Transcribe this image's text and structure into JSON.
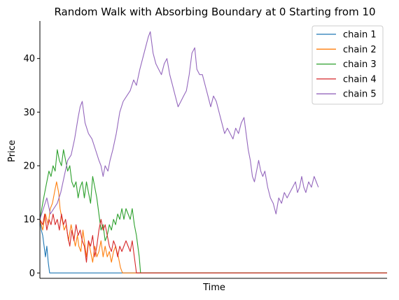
{
  "chart_data": {
    "type": "line",
    "title": "Random Walk with Absorbing Boundary at 0 Starting from 10",
    "xlabel": "Time",
    "ylabel": "Price",
    "xlim": [
      0,
      1000
    ],
    "ylim": [
      -1,
      47
    ],
    "yticks": [
      0,
      10,
      20,
      30,
      40
    ],
    "legend": "top-right",
    "grid": false,
    "series": [
      {
        "name": "chain 1",
        "color": "#1f77b4",
        "points": [
          [
            0,
            10
          ],
          [
            4,
            8
          ],
          [
            8,
            7
          ],
          [
            12,
            5
          ],
          [
            16,
            3
          ],
          [
            20,
            5
          ],
          [
            24,
            2
          ],
          [
            28,
            0
          ],
          [
            1000,
            0
          ]
        ]
      },
      {
        "name": "chain 2",
        "color": "#ff7f0e",
        "points": [
          [
            0,
            10
          ],
          [
            8,
            8
          ],
          [
            16,
            11
          ],
          [
            24,
            9
          ],
          [
            30,
            12
          ],
          [
            36,
            13
          ],
          [
            42,
            15
          ],
          [
            48,
            17
          ],
          [
            54,
            15
          ],
          [
            58,
            12
          ],
          [
            64,
            10
          ],
          [
            70,
            8
          ],
          [
            76,
            9
          ],
          [
            82,
            6
          ],
          [
            90,
            9
          ],
          [
            96,
            7
          ],
          [
            102,
            5
          ],
          [
            108,
            7
          ],
          [
            112,
            5
          ],
          [
            118,
            4
          ],
          [
            124,
            8
          ],
          [
            128,
            6
          ],
          [
            134,
            3
          ],
          [
            140,
            6
          ],
          [
            146,
            4
          ],
          [
            152,
            2
          ],
          [
            158,
            5
          ],
          [
            164,
            3
          ],
          [
            170,
            4
          ],
          [
            176,
            6
          ],
          [
            182,
            3
          ],
          [
            188,
            5
          ],
          [
            194,
            3
          ],
          [
            200,
            4
          ],
          [
            206,
            2
          ],
          [
            212,
            4
          ],
          [
            218,
            5
          ],
          [
            226,
            3
          ],
          [
            232,
            1
          ],
          [
            238,
            0
          ],
          [
            1000,
            0
          ]
        ]
      },
      {
        "name": "chain 3",
        "color": "#2ca02c",
        "points": [
          [
            0,
            10
          ],
          [
            8,
            13
          ],
          [
            14,
            15
          ],
          [
            20,
            17
          ],
          [
            26,
            19
          ],
          [
            32,
            18
          ],
          [
            38,
            20
          ],
          [
            44,
            19
          ],
          [
            50,
            23
          ],
          [
            56,
            21
          ],
          [
            62,
            20
          ],
          [
            68,
            23
          ],
          [
            74,
            21
          ],
          [
            80,
            19
          ],
          [
            86,
            20
          ],
          [
            92,
            17
          ],
          [
            98,
            16
          ],
          [
            104,
            17
          ],
          [
            110,
            14
          ],
          [
            116,
            16
          ],
          [
            122,
            17
          ],
          [
            128,
            14
          ],
          [
            134,
            17
          ],
          [
            140,
            15
          ],
          [
            146,
            13
          ],
          [
            152,
            18
          ],
          [
            158,
            16
          ],
          [
            164,
            14
          ],
          [
            170,
            11
          ],
          [
            176,
            8
          ],
          [
            182,
            9
          ],
          [
            188,
            6
          ],
          [
            194,
            7
          ],
          [
            200,
            9
          ],
          [
            206,
            8
          ],
          [
            212,
            10
          ],
          [
            218,
            9
          ],
          [
            224,
            11
          ],
          [
            230,
            10
          ],
          [
            236,
            12
          ],
          [
            242,
            10
          ],
          [
            248,
            12
          ],
          [
            254,
            11
          ],
          [
            260,
            10
          ],
          [
            266,
            12
          ],
          [
            272,
            9
          ],
          [
            278,
            7
          ],
          [
            282,
            5
          ],
          [
            286,
            3
          ],
          [
            290,
            0
          ],
          [
            1000,
            0
          ]
        ]
      },
      {
        "name": "chain 4",
        "color": "#d62728",
        "points": [
          [
            0,
            10
          ],
          [
            8,
            9
          ],
          [
            14,
            11
          ],
          [
            20,
            8
          ],
          [
            26,
            10
          ],
          [
            32,
            9
          ],
          [
            38,
            11
          ],
          [
            44,
            9
          ],
          [
            50,
            10
          ],
          [
            56,
            8
          ],
          [
            62,
            11
          ],
          [
            68,
            9
          ],
          [
            74,
            10
          ],
          [
            80,
            7
          ],
          [
            86,
            5
          ],
          [
            92,
            8
          ],
          [
            98,
            6
          ],
          [
            104,
            9
          ],
          [
            110,
            7
          ],
          [
            116,
            8
          ],
          [
            122,
            6
          ],
          [
            128,
            5
          ],
          [
            134,
            2
          ],
          [
            140,
            6
          ],
          [
            146,
            5
          ],
          [
            152,
            7
          ],
          [
            158,
            3
          ],
          [
            164,
            5
          ],
          [
            170,
            8
          ],
          [
            176,
            10
          ],
          [
            182,
            8
          ],
          [
            188,
            9
          ],
          [
            194,
            7
          ],
          [
            200,
            5
          ],
          [
            206,
            4
          ],
          [
            212,
            6
          ],
          [
            218,
            5
          ],
          [
            224,
            3
          ],
          [
            230,
            5
          ],
          [
            236,
            4
          ],
          [
            242,
            5
          ],
          [
            248,
            6
          ],
          [
            254,
            5
          ],
          [
            260,
            4
          ],
          [
            266,
            6
          ],
          [
            272,
            3
          ],
          [
            278,
            0
          ],
          [
            1000,
            0
          ]
        ]
      },
      {
        "name": "chain 5",
        "color": "#9467bd",
        "points": [
          [
            0,
            10
          ],
          [
            10,
            12
          ],
          [
            20,
            14
          ],
          [
            30,
            11
          ],
          [
            40,
            12
          ],
          [
            50,
            13
          ],
          [
            60,
            15
          ],
          [
            70,
            18
          ],
          [
            80,
            21
          ],
          [
            90,
            22
          ],
          [
            100,
            25
          ],
          [
            110,
            29
          ],
          [
            116,
            31
          ],
          [
            122,
            32
          ],
          [
            130,
            28
          ],
          [
            140,
            26
          ],
          [
            150,
            25
          ],
          [
            160,
            23
          ],
          [
            170,
            21
          ],
          [
            176,
            20
          ],
          [
            182,
            18
          ],
          [
            188,
            20
          ],
          [
            196,
            19
          ],
          [
            202,
            21
          ],
          [
            210,
            23
          ],
          [
            220,
            26
          ],
          [
            230,
            30
          ],
          [
            240,
            32
          ],
          [
            250,
            33
          ],
          [
            260,
            34
          ],
          [
            270,
            36
          ],
          [
            278,
            35
          ],
          [
            288,
            38
          ],
          [
            296,
            40
          ],
          [
            304,
            42
          ],
          [
            312,
            44
          ],
          [
            318,
            45
          ],
          [
            326,
            41
          ],
          [
            334,
            39
          ],
          [
            342,
            38
          ],
          [
            350,
            37
          ],
          [
            358,
            39
          ],
          [
            366,
            40
          ],
          [
            374,
            37
          ],
          [
            382,
            35
          ],
          [
            390,
            33
          ],
          [
            398,
            31
          ],
          [
            406,
            32
          ],
          [
            414,
            33
          ],
          [
            422,
            34
          ],
          [
            430,
            37
          ],
          [
            438,
            41
          ],
          [
            446,
            42
          ],
          [
            452,
            38
          ],
          [
            460,
            37
          ],
          [
            468,
            37
          ],
          [
            476,
            35
          ],
          [
            484,
            33
          ],
          [
            492,
            31
          ],
          [
            500,
            33
          ],
          [
            508,
            32
          ],
          [
            516,
            30
          ],
          [
            524,
            28
          ],
          [
            532,
            26
          ],
          [
            540,
            27
          ],
          [
            548,
            26
          ],
          [
            556,
            25
          ],
          [
            564,
            27
          ],
          [
            572,
            26
          ],
          [
            580,
            28
          ],
          [
            588,
            29
          ],
          [
            594,
            26
          ],
          [
            600,
            23
          ],
          [
            606,
            21
          ],
          [
            612,
            18
          ],
          [
            618,
            17
          ],
          [
            624,
            19
          ],
          [
            630,
            21
          ],
          [
            636,
            19
          ],
          [
            642,
            18
          ],
          [
            648,
            19
          ],
          [
            656,
            16
          ],
          [
            664,
            14
          ],
          [
            672,
            13
          ],
          [
            680,
            11
          ],
          [
            688,
            14
          ],
          [
            696,
            13
          ],
          [
            704,
            15
          ],
          [
            712,
            14
          ],
          [
            720,
            15
          ],
          [
            728,
            16
          ],
          [
            736,
            17
          ],
          [
            742,
            15
          ],
          [
            748,
            16
          ],
          [
            754,
            18
          ],
          [
            760,
            16
          ],
          [
            766,
            15
          ],
          [
            774,
            17
          ],
          [
            782,
            16
          ],
          [
            790,
            18
          ],
          [
            796,
            17
          ],
          [
            802,
            16
          ]
        ]
      }
    ]
  }
}
